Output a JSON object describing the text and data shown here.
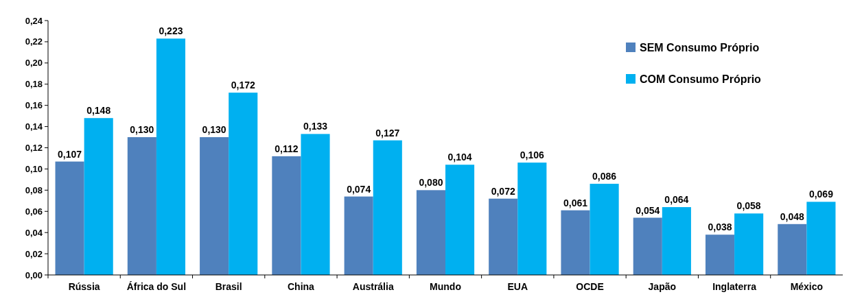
{
  "chart_data": {
    "type": "bar",
    "categories": [
      "Rússia",
      "África do Sul",
      "Brasil",
      "China",
      "Austrália",
      "Mundo",
      "EUA",
      "OCDE",
      "Japão",
      "Inglaterra",
      "México"
    ],
    "series": [
      {
        "name": "SEM Consumo Próprio",
        "color": "#4f81bd",
        "values": [
          0.107,
          0.13,
          0.13,
          0.112,
          0.074,
          0.08,
          0.072,
          0.061,
          0.054,
          0.038,
          0.048
        ],
        "value_labels": [
          "0,107",
          "0,130",
          "0,130",
          "0,112",
          "0,074",
          "0,080",
          "0,072",
          "0,061",
          "0,054",
          "0,038",
          "0,048"
        ]
      },
      {
        "name": "COM Consumo Próprio",
        "color": "#00b0f0",
        "values": [
          0.148,
          0.223,
          0.172,
          0.133,
          0.127,
          0.104,
          0.106,
          0.086,
          0.064,
          0.058,
          0.069
        ],
        "value_labels": [
          "0,148",
          "0,223",
          "0,172",
          "0,133",
          "0,127",
          "0,104",
          "0,106",
          "0,086",
          "0,064",
          "0,058",
          "0,069"
        ]
      }
    ],
    "ylim": [
      0,
      0.24
    ],
    "yticks": [
      {
        "value": 0,
        "label": "0,00"
      },
      {
        "value": 0.02,
        "label": "0,02"
      },
      {
        "value": 0.04,
        "label": "0,04"
      },
      {
        "value": 0.06,
        "label": "0,06"
      },
      {
        "value": 0.08,
        "label": "0,08"
      },
      {
        "value": 0.1,
        "label": "0,10"
      },
      {
        "value": 0.12,
        "label": "0,12"
      },
      {
        "value": 0.14,
        "label": "0,14"
      },
      {
        "value": 0.16,
        "label": "0,16"
      },
      {
        "value": 0.18,
        "label": "0,18"
      },
      {
        "value": 0.2,
        "label": "0,20"
      },
      {
        "value": 0.22,
        "label": "0,22"
      },
      {
        "value": 0.24,
        "label": "0,24"
      }
    ],
    "legend": "top right",
    "grid": false
  }
}
